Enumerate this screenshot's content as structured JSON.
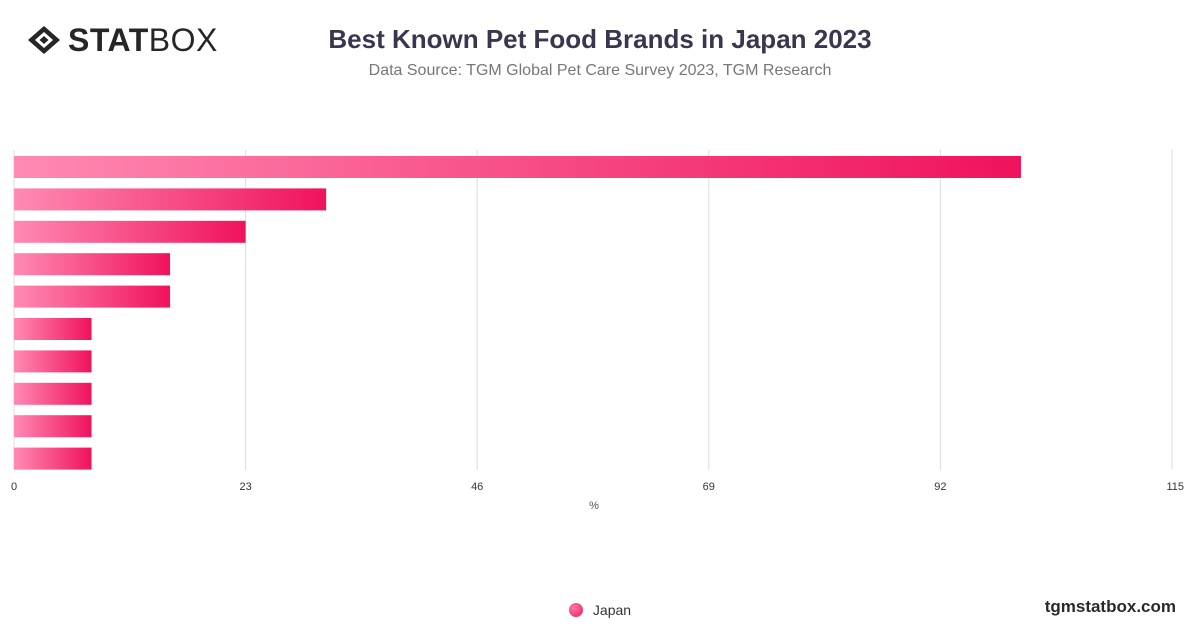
{
  "header": {
    "logo_bold": "STAT",
    "logo_light": "BOX",
    "title": "Best Known Pet Food Brands in Japan 2023",
    "subtitle": "Data Source: TGM Global Pet Care Survey 2023, TGM Research"
  },
  "footer": {
    "site": "tgmstatbox.com"
  },
  "colors": {
    "bar_start": "#ff8ab3",
    "bar_end": "#f0125c",
    "grid": "#dddddd",
    "axis_text": "#333333"
  },
  "chart_data": {
    "type": "bar",
    "orientation": "horizontal",
    "xlabel": "%",
    "xlim": [
      0,
      115
    ],
    "x_ticks": [
      0,
      23,
      46,
      69,
      92,
      115
    ],
    "grid": true,
    "legend_position": "bottom-center",
    "series": [
      {
        "name": "Japan",
        "values": [
          100,
          31,
          23,
          15.5,
          15.5,
          7.7,
          7.7,
          7.7,
          7.7,
          7.7
        ]
      }
    ]
  }
}
